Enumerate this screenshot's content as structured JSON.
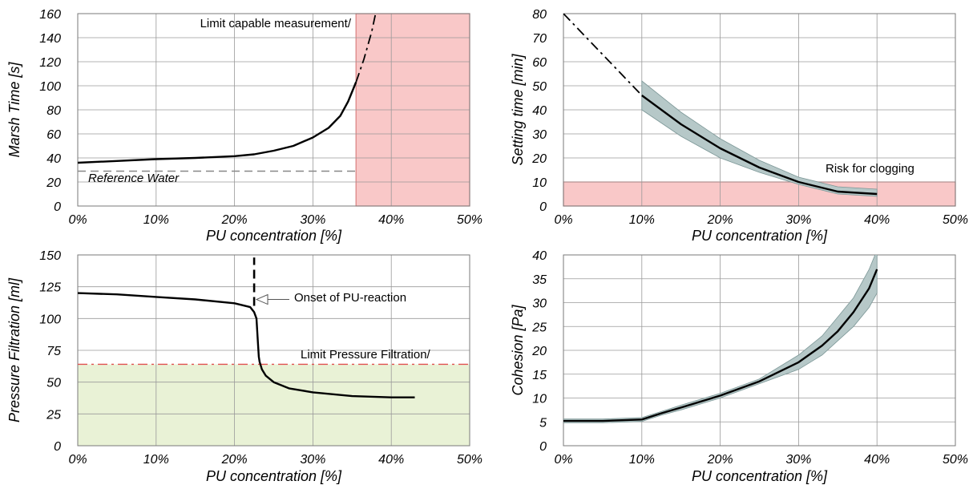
{
  "chart_data": [
    {
      "type": "line",
      "title": "",
      "xlabel": "PU concentration [%]",
      "ylabel": "Marsh Time [s]",
      "xlim": [
        0,
        50
      ],
      "ylim": [
        0,
        160
      ],
      "x_ticks": [
        0,
        10,
        20,
        30,
        40,
        50
      ],
      "y_ticks": [
        0,
        20,
        40,
        60,
        80,
        100,
        120,
        140,
        160
      ],
      "x_tick_format": "percent",
      "grid": true,
      "series": [
        {
          "style": "solid",
          "x": [
            0,
            5,
            10,
            15,
            20,
            22.5,
            25,
            27.5,
            30,
            32,
            33.5,
            34.5,
            35.5
          ],
          "y": [
            36,
            37.5,
            39,
            40,
            41.5,
            43,
            46,
            50,
            57,
            65,
            75,
            87,
            103
          ]
        },
        {
          "style": "dash-dot",
          "x": [
            35.5,
            36.5,
            37.5,
            38
          ],
          "y": [
            103,
            122,
            145,
            160
          ]
        }
      ],
      "regions": [
        {
          "x": [
            35.5,
            50
          ],
          "y": [
            0,
            160
          ],
          "color": "#f9c8c8",
          "border": "#d98080"
        }
      ],
      "ref_lines": [
        {
          "y": 29,
          "x": [
            0,
            35.5
          ],
          "style": "dashed",
          "color": "#888888",
          "label": "Reference Water"
        }
      ],
      "annotations": [
        {
          "text": "Limit capable measurement/"
        }
      ]
    },
    {
      "type": "line",
      "title": "",
      "xlabel": "PU concentration [%]",
      "ylabel": "Setting time [min]",
      "xlim": [
        0,
        50
      ],
      "ylim": [
        0,
        80
      ],
      "x_ticks": [
        0,
        10,
        20,
        30,
        40,
        50
      ],
      "y_ticks": [
        0,
        10,
        20,
        30,
        40,
        50,
        60,
        70,
        80
      ],
      "x_tick_format": "percent",
      "grid": true,
      "series": [
        {
          "style": "dash-dot",
          "x": [
            0,
            10
          ],
          "y": [
            80,
            46
          ]
        },
        {
          "style": "solid",
          "x": [
            10,
            15,
            20,
            25,
            30,
            35,
            40
          ],
          "y": [
            46,
            34,
            24,
            16,
            10,
            6,
            5
          ],
          "band_upper": [
            52,
            39,
            28,
            19,
            12,
            8,
            7
          ],
          "band_lower": [
            40,
            29,
            20,
            14,
            9,
            5,
            4
          ]
        }
      ],
      "band_color": "#b6c8c8",
      "regions": [
        {
          "x": [
            0,
            50
          ],
          "y": [
            0,
            10
          ],
          "color": "#f9c8c8",
          "border": "#d98080"
        }
      ],
      "annotations": [
        {
          "text": "Risk for clogging"
        }
      ]
    },
    {
      "type": "line",
      "title": "",
      "xlabel": "PU concentration [%]",
      "ylabel": "Pressure Filtration [ml]",
      "xlim": [
        0,
        50
      ],
      "ylim": [
        0,
        150
      ],
      "x_ticks": [
        0,
        10,
        20,
        30,
        40,
        50
      ],
      "y_ticks": [
        0,
        25,
        50,
        75,
        100,
        125,
        150
      ],
      "x_tick_format": "percent",
      "grid": true,
      "series": [
        {
          "style": "solid",
          "x": [
            0,
            5,
            10,
            15,
            20,
            22,
            22.5,
            22.8,
            23,
            23.1,
            23.2,
            23.5,
            24,
            25,
            27,
            30,
            35,
            40,
            43
          ],
          "y": [
            120,
            119,
            117,
            115,
            112,
            109,
            105,
            100,
            80,
            70,
            66,
            60,
            55,
            50,
            45,
            42,
            39,
            38,
            38
          ]
        },
        {
          "style": "dashed",
          "x": [
            22.5,
            22.5
          ],
          "y": [
            110,
            148
          ]
        }
      ],
      "regions": [
        {
          "x": [
            0,
            50
          ],
          "y": [
            0,
            64
          ],
          "color": "#e9f2d6",
          "border": null
        }
      ],
      "ref_lines": [
        {
          "y": 64,
          "x": [
            0,
            50
          ],
          "style": "dash-dot",
          "color": "#e05050",
          "label": "Limit Pressure Filtration/"
        }
      ],
      "annotations": [
        {
          "text": "Onset of PU-reaction",
          "arrow_to": [
            22.6,
            115
          ]
        }
      ]
    },
    {
      "type": "line",
      "title": "",
      "xlabel": "PU concentration [%]",
      "ylabel": "Cohesion  [Pa]",
      "xlim": [
        0,
        50
      ],
      "ylim": [
        0,
        40
      ],
      "x_ticks": [
        0,
        10,
        20,
        30,
        40,
        50
      ],
      "y_ticks": [
        0,
        5,
        10,
        15,
        20,
        25,
        30,
        35,
        40
      ],
      "x_tick_format": "percent",
      "grid": true,
      "series": [
        {
          "style": "solid",
          "x": [
            0,
            5,
            10,
            12.5,
            15,
            20,
            25,
            30,
            33,
            35,
            37,
            39,
            40
          ],
          "y": [
            5.2,
            5.2,
            5.5,
            6.8,
            8,
            10.5,
            13.5,
            17.5,
            21,
            24,
            28,
            33,
            37
          ],
          "band_upper": [
            5.6,
            5.6,
            5.9,
            7.2,
            8.5,
            11,
            14,
            19,
            23,
            27,
            31,
            37,
            41
          ],
          "band_lower": [
            4.8,
            4.8,
            5.1,
            6.4,
            7.5,
            10,
            13,
            16,
            19,
            22,
            25,
            29,
            32
          ]
        }
      ],
      "band_color": "#b6c8c8"
    }
  ]
}
